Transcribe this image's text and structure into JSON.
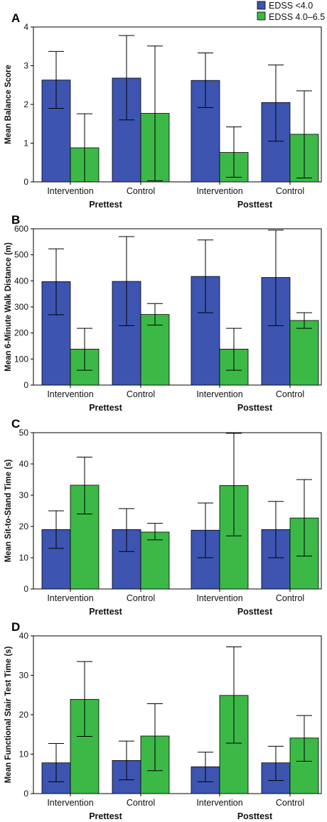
{
  "legend": {
    "position": "top-right",
    "entries": [
      {
        "label": "EDSS <4.0",
        "color": "#3d55b0"
      },
      {
        "label": "EDSS 4.0–6.5",
        "color": "#3cb846"
      }
    ]
  },
  "chart_data": [
    {
      "type": "bar",
      "panel": "A",
      "ylabel": "Mean Balance Score",
      "ylim": [
        0,
        4
      ],
      "yticks": [
        0,
        1,
        2,
        3,
        4
      ],
      "categories": [
        "Intervention",
        "Control",
        "Intervention",
        "Control"
      ],
      "groups": [
        "Prettest",
        "Posttest"
      ],
      "series": [
        {
          "name": "EDSS <4.0",
          "values": [
            2.63,
            2.68,
            2.62,
            2.05
          ],
          "error_low": [
            1.9,
            1.6,
            1.92,
            1.05
          ],
          "error_high": [
            3.37,
            3.78,
            3.33,
            3.02
          ]
        },
        {
          "name": "EDSS 4.0–6.5",
          "values": [
            0.88,
            1.77,
            0.76,
            1.23
          ],
          "error_low": [
            0.0,
            0.03,
            0.12,
            0.1
          ],
          "error_high": [
            1.76,
            3.51,
            1.42,
            2.35
          ]
        }
      ]
    },
    {
      "type": "bar",
      "panel": "B",
      "ylabel": "Mean 6-Minute Walk Distance (m)",
      "ylim": [
        0,
        600
      ],
      "yticks": [
        0,
        100,
        200,
        300,
        400,
        500,
        600
      ],
      "categories": [
        "Intervention",
        "Control",
        "Intervention",
        "Control"
      ],
      "groups": [
        "Prettest",
        "Posttest"
      ],
      "series": [
        {
          "name": "EDSS <4.0",
          "values": [
            397,
            398,
            417,
            413
          ],
          "error_low": [
            270,
            228,
            278,
            228
          ],
          "error_high": [
            523,
            570,
            557,
            595
          ]
        },
        {
          "name": "EDSS 4.0–6.5",
          "values": [
            138,
            271,
            138,
            248
          ],
          "error_low": [
            57,
            230,
            57,
            218
          ],
          "error_high": [
            218,
            313,
            218,
            278
          ]
        }
      ]
    },
    {
      "type": "bar",
      "panel": "C",
      "ylabel": "Mean Sit-to-Stand Time (s)",
      "ylim": [
        0,
        50
      ],
      "yticks": [
        0,
        10,
        20,
        30,
        40,
        50
      ],
      "categories": [
        "Intervention",
        "Control",
        "Intervention",
        "Control"
      ],
      "groups": [
        "Prettest",
        "Posttest"
      ],
      "series": [
        {
          "name": "EDSS <4.0",
          "values": [
            19.0,
            19.0,
            18.8,
            19.0
          ],
          "error_low": [
            13.0,
            12.0,
            10.0,
            10.0
          ],
          "error_high": [
            25.0,
            25.7,
            27.5,
            28.0
          ]
        },
        {
          "name": "EDSS 4.0–6.5",
          "values": [
            33.2,
            18.2,
            33.1,
            22.7
          ],
          "error_low": [
            24.0,
            15.7,
            17.0,
            10.5
          ],
          "error_high": [
            42.2,
            21.0,
            49.8,
            35.0
          ]
        }
      ]
    },
    {
      "type": "bar",
      "panel": "D",
      "ylabel": "Mean Functional Stair Test Time (s)",
      "ylim": [
        0,
        40
      ],
      "yticks": [
        0,
        10,
        20,
        30,
        40
      ],
      "categories": [
        "Intervention",
        "Control",
        "Intervention",
        "Control"
      ],
      "groups": [
        "Prettest",
        "Posttest"
      ],
      "series": [
        {
          "name": "EDSS <4.0",
          "values": [
            7.8,
            8.4,
            6.8,
            7.8
          ],
          "error_low": [
            3.0,
            3.5,
            3.0,
            3.3
          ],
          "error_high": [
            12.7,
            13.3,
            10.5,
            12.0
          ]
        },
        {
          "name": "EDSS 4.0–6.5",
          "values": [
            23.9,
            14.6,
            24.9,
            14.1
          ],
          "error_low": [
            14.5,
            5.8,
            12.8,
            8.2
          ],
          "error_high": [
            33.5,
            22.8,
            37.2,
            19.8
          ]
        }
      ]
    }
  ]
}
